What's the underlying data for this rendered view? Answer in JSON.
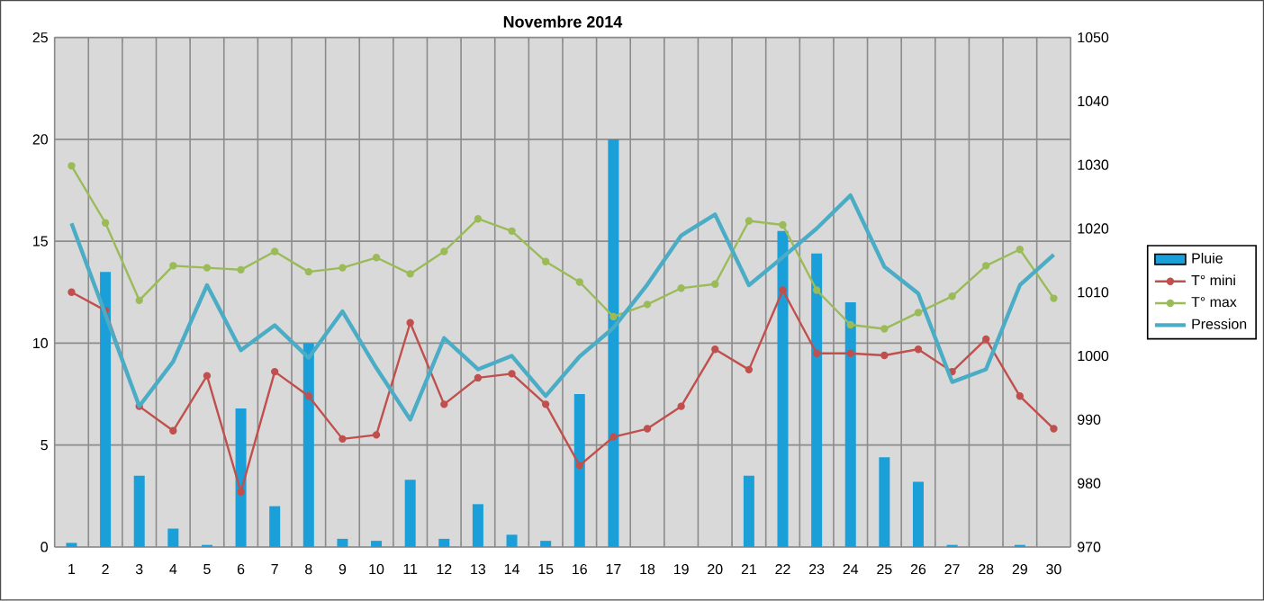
{
  "chart_data": {
    "type": "bar",
    "title": "Novembre 2014",
    "categories": [
      "1",
      "2",
      "3",
      "4",
      "5",
      "6",
      "7",
      "8",
      "9",
      "10",
      "11",
      "12",
      "13",
      "14",
      "15",
      "16",
      "17",
      "18",
      "19",
      "20",
      "21",
      "22",
      "23",
      "24",
      "25",
      "26",
      "27",
      "28",
      "29",
      "30"
    ],
    "series": [
      {
        "name": "Pluie",
        "color": "#1a9fd8",
        "values": [
          0.2,
          13.5,
          3.5,
          0.9,
          0.1,
          6.8,
          2.0,
          10.0,
          0.4,
          0.3,
          3.3,
          0.4,
          2.1,
          0.6,
          0.3,
          7.5,
          20.0,
          0,
          0,
          0,
          3.5,
          15.5,
          14.4,
          12.0,
          4.4,
          3.2,
          0.1,
          0,
          0.1,
          0
        ]
      },
      {
        "name": "T° mini",
        "type": "line",
        "color": "#c0504d",
        "marker": "circle",
        "values": [
          12.5,
          11.6,
          6.9,
          5.7,
          8.4,
          2.7,
          8.6,
          7.4,
          5.3,
          5.5,
          11.0,
          7.0,
          8.3,
          8.5,
          7.0,
          4.0,
          5.4,
          5.8,
          6.9,
          9.7,
          8.7,
          12.6,
          9.5,
          9.5,
          9.4,
          9.7,
          8.6,
          10.2,
          7.4,
          5.8
        ]
      },
      {
        "name": "T° max",
        "type": "line",
        "color": "#9bbb59",
        "marker": "circle",
        "values": [
          18.7,
          15.9,
          12.1,
          13.8,
          13.7,
          13.6,
          14.5,
          13.5,
          13.7,
          14.2,
          13.4,
          14.5,
          16.1,
          15.5,
          14.0,
          13.0,
          11.3,
          11.9,
          12.7,
          12.9,
          16.0,
          15.8,
          12.6,
          10.9,
          10.7,
          11.5,
          12.3,
          13.8,
          14.6,
          12.2
        ]
      },
      {
        "name": "Pression",
        "type": "line",
        "axis": "y2",
        "color": "#4bacc6",
        "marker": "none",
        "values": [
          1020.8,
          1006.5,
          992.1,
          999.1,
          1011.1,
          1000.9,
          1004.8,
          999.7,
          1007.0,
          998.1,
          990.0,
          1002.8,
          997.9,
          1000.0,
          993.7,
          999.9,
          1004.4,
          1011.2,
          1018.9,
          1022.2,
          1011.1,
          1015.5,
          1020.0,
          1025.2,
          1014.0,
          1009.8,
          995.9,
          997.9,
          1011.1,
          1015.9
        ]
      }
    ],
    "ylim": [
      0,
      25
    ],
    "yticks": [
      0,
      5,
      10,
      15,
      20,
      25
    ],
    "y2lim": [
      970,
      1050
    ],
    "y2ticks": [
      970,
      980,
      990,
      1000,
      1010,
      1020,
      1030,
      1040,
      1050
    ],
    "grid": true,
    "legend": "right"
  }
}
